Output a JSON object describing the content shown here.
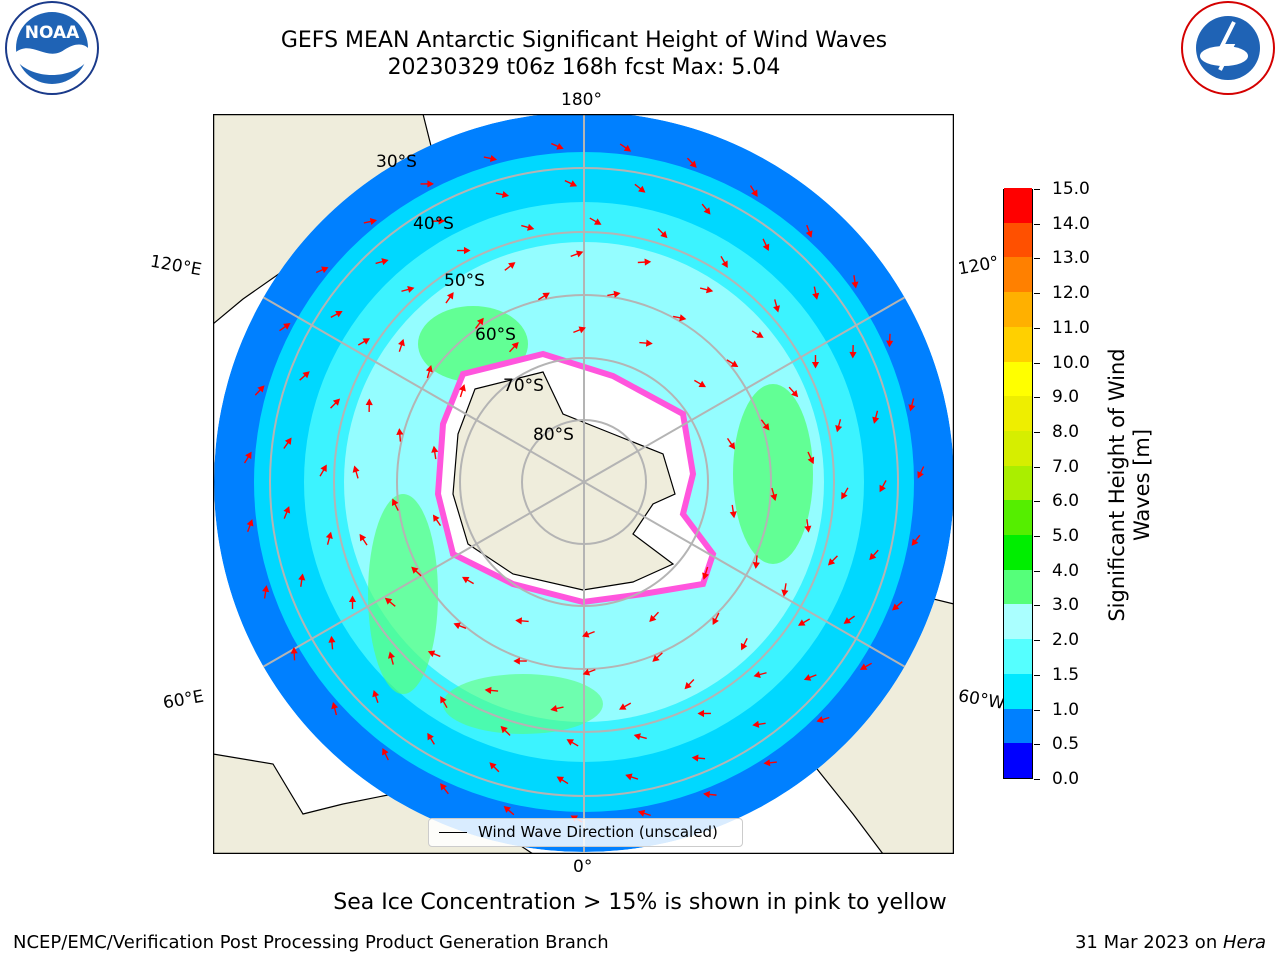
{
  "title": {
    "line1": "GEFS MEAN Antarctic Significant Height of Wind Waves",
    "line2": "20230329 t06z 168h fcst   Max: 5.04"
  },
  "map": {
    "longitude_labels": {
      "top": "180°",
      "bottom": "0°",
      "left_upper": "120°E",
      "left_lower": "60°E",
      "right_upper": "120°",
      "right_lower": "60°W"
    },
    "latitude_labels": [
      "30°S",
      "40°S",
      "50°S",
      "60°S",
      "70°S",
      "80°S"
    ],
    "legend": "Wind Wave Direction (unscaled)",
    "colors": {
      "land": "#efeddc",
      "ice": "#ffffff",
      "ice_edge": "#ff55dd",
      "arrows": "#ff0000",
      "graticule": "#b4b4b4"
    }
  },
  "colorbar": {
    "title_line1": "Significant Height of Wind",
    "title_line2": "Waves [m]",
    "ticks": [
      "0.0",
      "0.5",
      "1.0",
      "1.5",
      "2.0",
      "3.0",
      "4.0",
      "5.0",
      "6.0",
      "7.0",
      "8.0",
      "9.0",
      "10.0",
      "11.0",
      "12.0",
      "13.0",
      "14.0",
      "15.0"
    ],
    "colors": [
      "#0000ff",
      "#0080ff",
      "#00e8ff",
      "#55ffff",
      "#aaffff",
      "#55ff7a",
      "#00ee00",
      "#55ee00",
      "#aaee00",
      "#d6ee00",
      "#eeee00",
      "#ffff00",
      "#ffd000",
      "#ffb000",
      "#ff8000",
      "#ff5000",
      "#ff0000"
    ]
  },
  "note": "Sea Ice Concentration > 15% is shown in pink to yellow",
  "footer": {
    "left": "NCEP/EMC/Verification Post Processing Product Generation Branch",
    "right_date": "31 Mar 2023 on ",
    "right_host": "Hera"
  },
  "logos": {
    "left": "NOAA",
    "right": "NATIONAL WEATHER SERVICE"
  }
}
